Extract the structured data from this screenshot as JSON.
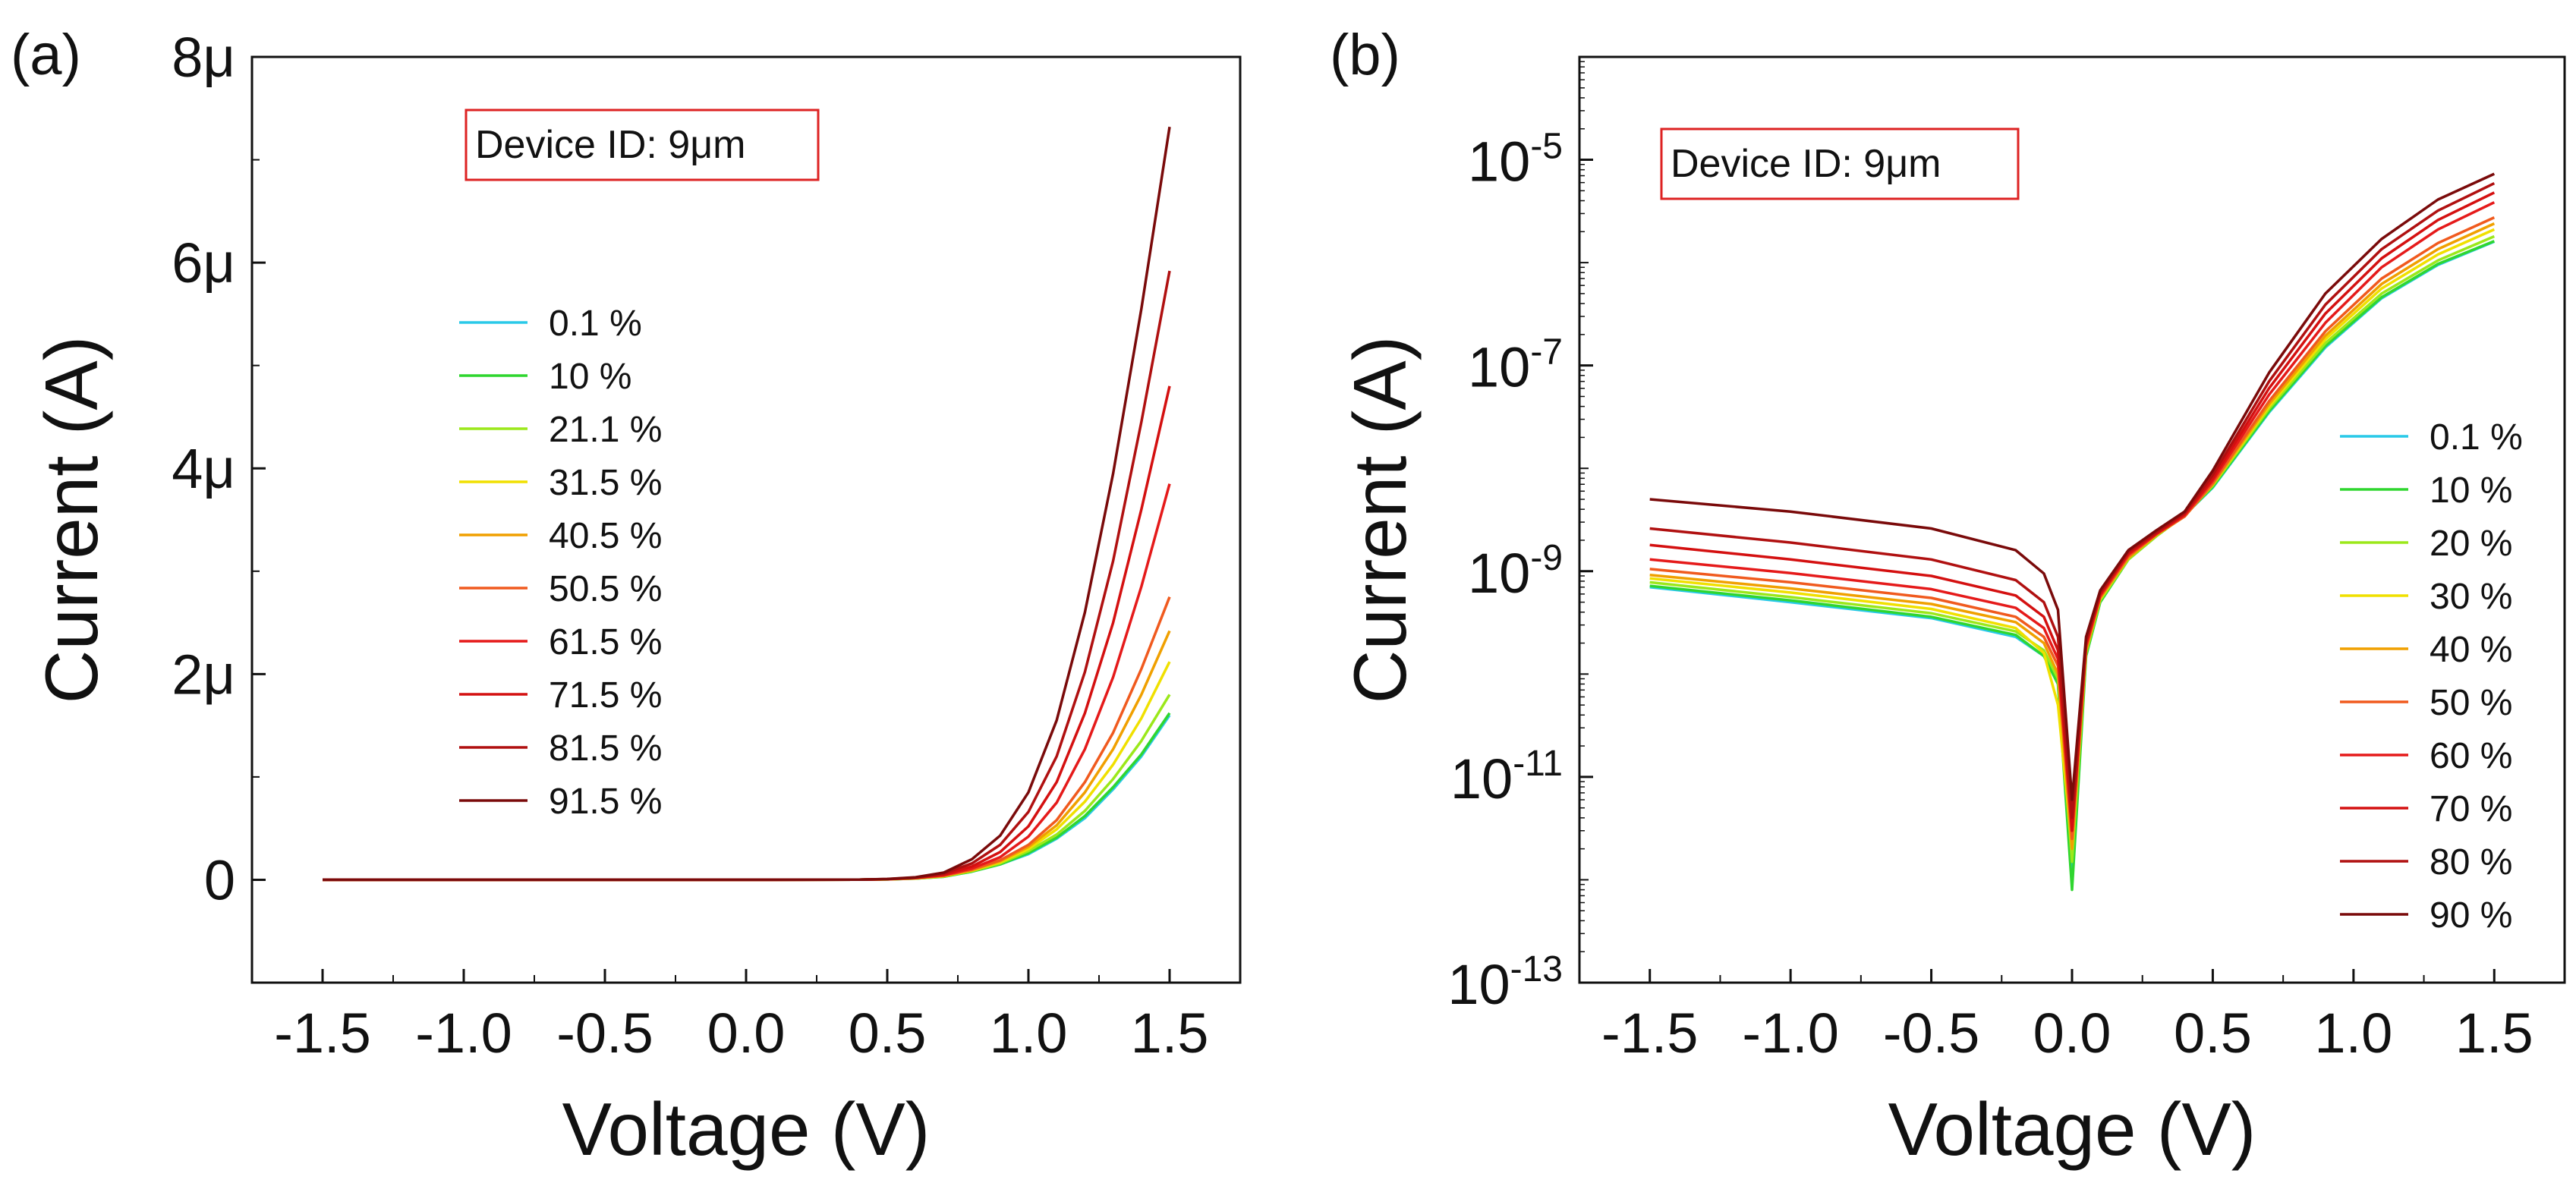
{
  "chart_data": [
    {
      "type": "line",
      "panel_label": "(a)",
      "xlabel": "Voltage (V)",
      "ylabel": "Current (A)",
      "y_scale": "linear",
      "xlim": [
        -1.75,
        1.75
      ],
      "ylim": [
        -1e-06,
        8e-06
      ],
      "x_ticks": [
        -1.5,
        -1.0,
        -0.5,
        0.0,
        0.5,
        1.0,
        1.5
      ],
      "x_tick_labels": [
        "-1.5",
        "-1.0",
        "-0.5",
        "0.0",
        "0.5",
        "1.0",
        "1.5"
      ],
      "y_ticks": [
        0,
        2e-06,
        4e-06,
        6e-06,
        8e-06
      ],
      "y_tick_labels": [
        "0",
        "2μ",
        "4μ",
        "6μ",
        "8μ"
      ],
      "annotation": "Device ID: 9μm",
      "legend_position": "center-left",
      "x": [
        -1.5,
        -1.0,
        -0.5,
        0.0,
        0.4,
        0.5,
        0.6,
        0.7,
        0.8,
        0.9,
        1.0,
        1.1,
        1.2,
        1.3,
        1.4,
        1.5
      ],
      "series": [
        {
          "name": "0.1 %",
          "color": "#29c9e8",
          "values": [
            0,
            0,
            0,
            0,
            1e-09,
            4e-09,
            1.2e-08,
            3e-08,
            8e-08,
            1.5e-07,
            2.5e-07,
            4e-07,
            6e-07,
            8.8e-07,
            1.2e-06,
            1.6e-06
          ]
        },
        {
          "name": "10 %",
          "color": "#2fd62f",
          "values": [
            0,
            0,
            0,
            0,
            1e-09,
            4e-09,
            1.2e-08,
            3e-08,
            8e-08,
            1.5e-07,
            2.6e-07,
            4.1e-07,
            6.2e-07,
            9e-07,
            1.22e-06,
            1.62e-06
          ]
        },
        {
          "name": "21.1 %",
          "color": "#9be81a",
          "values": [
            0,
            0,
            0,
            0,
            1e-09,
            4e-09,
            1.3e-08,
            3.2e-08,
            8.5e-08,
            1.6e-07,
            2.8e-07,
            4.4e-07,
            6.7e-07,
            9.8e-07,
            1.35e-06,
            1.8e-06
          ]
        },
        {
          "name": "31.5 %",
          "color": "#f0e000",
          "values": [
            0,
            0,
            0,
            0,
            1e-09,
            4e-09,
            1.4e-08,
            3.5e-08,
            9e-08,
            1.7e-07,
            3e-07,
            4.9e-07,
            7.6e-07,
            1.12e-06,
            1.57e-06,
            2.12e-06
          ]
        },
        {
          "name": "40.5 %",
          "color": "#f0a000",
          "values": [
            0,
            0,
            0,
            0,
            1e-09,
            5e-09,
            1.5e-08,
            3.7e-08,
            9.5e-08,
            1.8e-07,
            3.2e-07,
            5.3e-07,
            8.5e-07,
            1.27e-06,
            1.8e-06,
            2.42e-06
          ]
        },
        {
          "name": "50.5 %",
          "color": "#f05a1e",
          "values": [
            0,
            0,
            0,
            0,
            1e-09,
            5e-09,
            1.6e-08,
            4e-08,
            1e-07,
            1.9e-07,
            3.4e-07,
            5.8e-07,
            9.5e-07,
            1.43e-06,
            2.05e-06,
            2.75e-06
          ]
        },
        {
          "name": "61.5 %",
          "color": "#e51a1a",
          "values": [
            0,
            0,
            0,
            0,
            1e-09,
            6e-09,
            1.8e-08,
            4.5e-08,
            1.1e-07,
            2.2e-07,
            4.2e-07,
            7.5e-07,
            1.27e-06,
            1.97e-06,
            2.85e-06,
            3.85e-06
          ]
        },
        {
          "name": "71.5 %",
          "color": "#d41010",
          "values": [
            0,
            0,
            0,
            0,
            1e-09,
            6e-09,
            2e-08,
            5e-08,
            1.3e-07,
            2.7e-07,
            5.2e-07,
            9.5e-07,
            1.62e-06,
            2.5e-06,
            3.6e-06,
            4.8e-06
          ]
        },
        {
          "name": "81.5 %",
          "color": "#b01010",
          "values": [
            0,
            0,
            0,
            0,
            1e-09,
            7e-09,
            2.2e-08,
            6e-08,
            1.6e-07,
            3.4e-07,
            6.6e-07,
            1.2e-06,
            2.02e-06,
            3.1e-06,
            4.45e-06,
            5.92e-06
          ]
        },
        {
          "name": "91.5 %",
          "color": "#7a0a0a",
          "values": [
            0,
            0,
            0,
            0,
            2e-09,
            8e-09,
            2.5e-08,
            7e-08,
            2e-07,
            4.3e-07,
            8.5e-07,
            1.55e-06,
            2.6e-06,
            3.95e-06,
            5.55e-06,
            7.32e-06
          ]
        }
      ]
    },
    {
      "type": "line",
      "panel_label": "(b)",
      "xlabel": "Voltage (V)",
      "ylabel": "Current (A)",
      "y_scale": "log",
      "xlim": [
        -1.75,
        1.75
      ],
      "ylim": [
        1e-13,
        0.0001
      ],
      "x_ticks": [
        -1.5,
        -1.0,
        -0.5,
        0.0,
        0.5,
        1.0,
        1.5
      ],
      "x_tick_labels": [
        "-1.5",
        "-1.0",
        "-0.5",
        "0.0",
        "0.5",
        "1.0",
        "1.5"
      ],
      "y_ticks": [
        1e-13,
        1e-11,
        1e-09,
        1e-07,
        1e-05
      ],
      "y_tick_labels": [
        {
          "base": "10",
          "exp": "-13"
        },
        {
          "base": "10",
          "exp": "-11"
        },
        {
          "base": "10",
          "exp": "-9"
        },
        {
          "base": "10",
          "exp": "-7"
        },
        {
          "base": "10",
          "exp": "-5"
        }
      ],
      "annotation": "Device ID: 9μm",
      "legend_position": "bottom-right",
      "x": [
        -1.5,
        -1.0,
        -0.5,
        -0.2,
        -0.1,
        -0.05,
        0.0,
        0.05,
        0.1,
        0.2,
        0.3,
        0.4,
        0.5,
        0.7,
        0.9,
        1.1,
        1.3,
        1.5
      ],
      "series": [
        {
          "name": "0.1 %",
          "color": "#29c9e8",
          "values": [
            7e-10,
            5e-10,
            3.5e-10,
            2.3e-10,
            1.5e-10,
            8e-11,
            1.2e-12,
            1.5e-10,
            5e-10,
            1.3e-09,
            2.2e-09,
            3.5e-09,
            6.5e-09,
            3.5e-08,
            1.5e-07,
            4.5e-07,
            9.5e-07,
            1.6e-06
          ]
        },
        {
          "name": "10 %",
          "color": "#2fd62f",
          "values": [
            7.2e-10,
            5.2e-10,
            3.6e-10,
            2.4e-10,
            1.5e-10,
            8e-11,
            8e-13,
            1.5e-10,
            5e-10,
            1.3e-09,
            2.2e-09,
            3.5e-09,
            6.6e-09,
            3.6e-08,
            1.55e-07,
            4.6e-07,
            9.7e-07,
            1.62e-06
          ]
        },
        {
          "name": "20 %",
          "color": "#9be81a",
          "values": [
            7.8e-10,
            5.6e-10,
            3.9e-10,
            2.6e-10,
            1.7e-10,
            9e-11,
            1.5e-12,
            1.6e-10,
            5.2e-10,
            1.3e-09,
            2.2e-09,
            3.5e-09,
            6.8e-09,
            3.8e-08,
            1.65e-07,
            5e-07,
            1.05e-06,
            1.8e-06
          ]
        },
        {
          "name": "30 %",
          "color": "#f0e000",
          "values": [
            8.5e-10,
            6.2e-10,
            4.3e-10,
            2.8e-10,
            1.6e-10,
            5e-11,
            2e-12,
            1.7e-10,
            5.4e-10,
            1.35e-09,
            2.25e-09,
            3.5e-09,
            7e-09,
            4e-08,
            1.8e-07,
            5.6e-07,
            1.2e-06,
            2.1e-06
          ]
        },
        {
          "name": "40 %",
          "color": "#f0a000",
          "values": [
            9.2e-10,
            6.8e-10,
            4.8e-10,
            3.2e-10,
            2e-10,
            1e-10,
            2e-12,
            1.7e-10,
            5.5e-10,
            1.35e-09,
            2.25e-09,
            3.4e-09,
            7e-09,
            4.2e-08,
            1.95e-07,
            6.2e-07,
            1.35e-06,
            2.4e-06
          ]
        },
        {
          "name": "50 %",
          "color": "#f05a1e",
          "values": [
            1.05e-09,
            7.8e-10,
            5.5e-10,
            3.6e-10,
            2.3e-10,
            1.2e-10,
            2.5e-12,
            1.8e-10,
            5.6e-10,
            1.4e-09,
            2.3e-09,
            3.4e-09,
            7.2e-09,
            4.5e-08,
            2.15e-07,
            7e-07,
            1.55e-06,
            2.75e-06
          ]
        },
        {
          "name": "60 %",
          "color": "#e51a1a",
          "values": [
            1.3e-09,
            9.6e-10,
            6.7e-10,
            4.4e-10,
            2.8e-10,
            1.4e-10,
            3e-12,
            1.9e-10,
            5.8e-10,
            1.45e-09,
            2.3e-09,
            3.5e-09,
            7.6e-09,
            5.2e-08,
            2.6e-07,
            9e-07,
            2.1e-06,
            3.85e-06
          ]
        },
        {
          "name": "70 %",
          "color": "#d41010",
          "values": [
            1.8e-09,
            1.3e-09,
            9e-10,
            5.8e-10,
            3.6e-10,
            1.7e-10,
            3e-12,
            2e-10,
            6e-10,
            1.5e-09,
            2.35e-09,
            3.6e-09,
            8e-09,
            6e-08,
            3.2e-07,
            1.1e-06,
            2.6e-06,
            4.8e-06
          ]
        },
        {
          "name": "80 %",
          "color": "#b01010",
          "values": [
            2.6e-09,
            1.9e-09,
            1.3e-09,
            8.2e-10,
            5e-10,
            2.3e-10,
            4e-12,
            2.1e-10,
            6.2e-10,
            1.55e-09,
            2.4e-09,
            3.7e-09,
            8.6e-09,
            7e-08,
            3.9e-07,
            1.35e-06,
            3.2e-06,
            5.9e-06
          ]
        },
        {
          "name": "90 %",
          "color": "#7a0a0a",
          "values": [
            5e-09,
            3.8e-09,
            2.6e-09,
            1.6e-09,
            9.5e-10,
            4.2e-10,
            6e-12,
            2.3e-10,
            6.5e-10,
            1.6e-09,
            2.5e-09,
            3.8e-09,
            9.5e-09,
            8.5e-08,
            5e-07,
            1.7e-06,
            4.1e-06,
            7.3e-06
          ]
        }
      ]
    }
  ]
}
